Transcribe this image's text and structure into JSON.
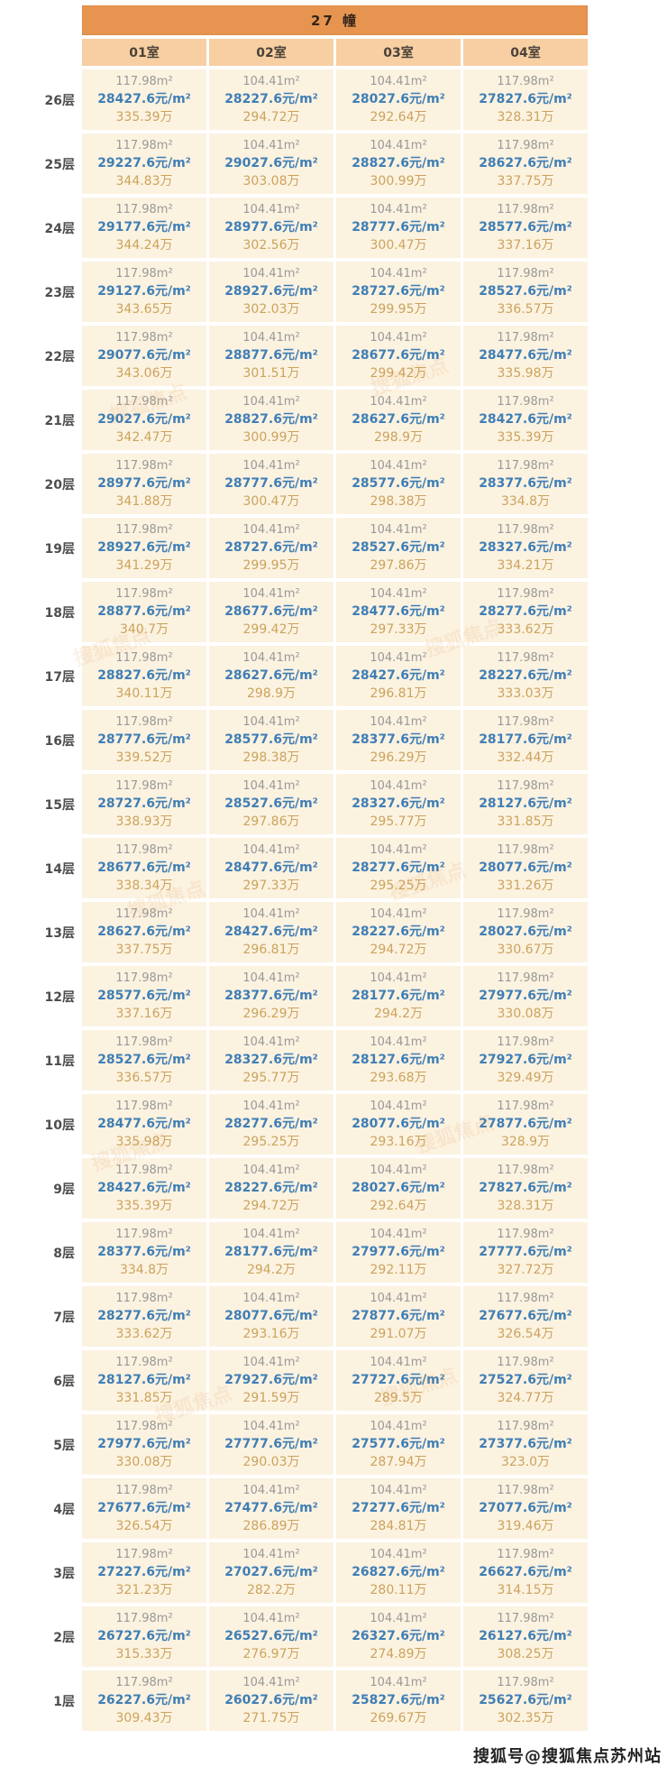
{
  "building": {
    "title": "27 幢"
  },
  "columns": [
    "01室",
    "02室",
    "03室",
    "04室"
  ],
  "floors": [
    {
      "label": "26层",
      "cells": [
        [
          "117.98m²",
          "28427.6元/m²",
          "335.39万"
        ],
        [
          "104.41m²",
          "28227.6元/m²",
          "294.72万"
        ],
        [
          "104.41m²",
          "28027.6元/m²",
          "292.64万"
        ],
        [
          "117.98m²",
          "27827.6元/m²",
          "328.31万"
        ]
      ]
    },
    {
      "label": "25层",
      "cells": [
        [
          "117.98m²",
          "29227.6元/m²",
          "344.83万"
        ],
        [
          "104.41m²",
          "29027.6元/m²",
          "303.08万"
        ],
        [
          "104.41m²",
          "28827.6元/m²",
          "300.99万"
        ],
        [
          "117.98m²",
          "28627.6元/m²",
          "337.75万"
        ]
      ]
    },
    {
      "label": "24层",
      "cells": [
        [
          "117.98m²",
          "29177.6元/m²",
          "344.24万"
        ],
        [
          "104.41m²",
          "28977.6元/m²",
          "302.56万"
        ],
        [
          "104.41m²",
          "28777.6元/m²",
          "300.47万"
        ],
        [
          "117.98m²",
          "28577.6元/m²",
          "337.16万"
        ]
      ]
    },
    {
      "label": "23层",
      "cells": [
        [
          "117.98m²",
          "29127.6元/m²",
          "343.65万"
        ],
        [
          "104.41m²",
          "28927.6元/m²",
          "302.03万"
        ],
        [
          "104.41m²",
          "28727.6元/m²",
          "299.95万"
        ],
        [
          "117.98m²",
          "28527.6元/m²",
          "336.57万"
        ]
      ]
    },
    {
      "label": "22层",
      "cells": [
        [
          "117.98m²",
          "29077.6元/m²",
          "343.06万"
        ],
        [
          "104.41m²",
          "28877.6元/m²",
          "301.51万"
        ],
        [
          "104.41m²",
          "28677.6元/m²",
          "299.42万"
        ],
        [
          "117.98m²",
          "28477.6元/m²",
          "335.98万"
        ]
      ]
    },
    {
      "label": "21层",
      "cells": [
        [
          "117.98m²",
          "29027.6元/m²",
          "342.47万"
        ],
        [
          "104.41m²",
          "28827.6元/m²",
          "300.99万"
        ],
        [
          "104.41m²",
          "28627.6元/m²",
          "298.9万"
        ],
        [
          "117.98m²",
          "28427.6元/m²",
          "335.39万"
        ]
      ]
    },
    {
      "label": "20层",
      "cells": [
        [
          "117.98m²",
          "28977.6元/m²",
          "341.88万"
        ],
        [
          "104.41m²",
          "28777.6元/m²",
          "300.47万"
        ],
        [
          "104.41m²",
          "28577.6元/m²",
          "298.38万"
        ],
        [
          "117.98m²",
          "28377.6元/m²",
          "334.8万"
        ]
      ]
    },
    {
      "label": "19层",
      "cells": [
        [
          "117.98m²",
          "28927.6元/m²",
          "341.29万"
        ],
        [
          "104.41m²",
          "28727.6元/m²",
          "299.95万"
        ],
        [
          "104.41m²",
          "28527.6元/m²",
          "297.86万"
        ],
        [
          "117.98m²",
          "28327.6元/m²",
          "334.21万"
        ]
      ]
    },
    {
      "label": "18层",
      "cells": [
        [
          "117.98m²",
          "28877.6元/m²",
          "340.7万"
        ],
        [
          "104.41m²",
          "28677.6元/m²",
          "299.42万"
        ],
        [
          "104.41m²",
          "28477.6元/m²",
          "297.33万"
        ],
        [
          "117.98m²",
          "28277.6元/m²",
          "333.62万"
        ]
      ]
    },
    {
      "label": "17层",
      "cells": [
        [
          "117.98m²",
          "28827.6元/m²",
          "340.11万"
        ],
        [
          "104.41m²",
          "28627.6元/m²",
          "298.9万"
        ],
        [
          "104.41m²",
          "28427.6元/m²",
          "296.81万"
        ],
        [
          "117.98m²",
          "28227.6元/m²",
          "333.03万"
        ]
      ]
    },
    {
      "label": "16层",
      "cells": [
        [
          "117.98m²",
          "28777.6元/m²",
          "339.52万"
        ],
        [
          "104.41m²",
          "28577.6元/m²",
          "298.38万"
        ],
        [
          "104.41m²",
          "28377.6元/m²",
          "296.29万"
        ],
        [
          "117.98m²",
          "28177.6元/m²",
          "332.44万"
        ]
      ]
    },
    {
      "label": "15层",
      "cells": [
        [
          "117.98m²",
          "28727.6元/m²",
          "338.93万"
        ],
        [
          "104.41m²",
          "28527.6元/m²",
          "297.86万"
        ],
        [
          "104.41m²",
          "28327.6元/m²",
          "295.77万"
        ],
        [
          "117.98m²",
          "28127.6元/m²",
          "331.85万"
        ]
      ]
    },
    {
      "label": "14层",
      "cells": [
        [
          "117.98m²",
          "28677.6元/m²",
          "338.34万"
        ],
        [
          "104.41m²",
          "28477.6元/m²",
          "297.33万"
        ],
        [
          "104.41m²",
          "28277.6元/m²",
          "295.25万"
        ],
        [
          "117.98m²",
          "28077.6元/m²",
          "331.26万"
        ]
      ]
    },
    {
      "label": "13层",
      "cells": [
        [
          "117.98m²",
          "28627.6元/m²",
          "337.75万"
        ],
        [
          "104.41m²",
          "28427.6元/m²",
          "296.81万"
        ],
        [
          "104.41m²",
          "28227.6元/m²",
          "294.72万"
        ],
        [
          "117.98m²",
          "28027.6元/m²",
          "330.67万"
        ]
      ]
    },
    {
      "label": "12层",
      "cells": [
        [
          "117.98m²",
          "28577.6元/m²",
          "337.16万"
        ],
        [
          "104.41m²",
          "28377.6元/m²",
          "296.29万"
        ],
        [
          "104.41m²",
          "28177.6元/m²",
          "294.2万"
        ],
        [
          "117.98m²",
          "27977.6元/m²",
          "330.08万"
        ]
      ]
    },
    {
      "label": "11层",
      "cells": [
        [
          "117.98m²",
          "28527.6元/m²",
          "336.57万"
        ],
        [
          "104.41m²",
          "28327.6元/m²",
          "295.77万"
        ],
        [
          "104.41m²",
          "28127.6元/m²",
          "293.68万"
        ],
        [
          "117.98m²",
          "27927.6元/m²",
          "329.49万"
        ]
      ]
    },
    {
      "label": "10层",
      "cells": [
        [
          "117.98m²",
          "28477.6元/m²",
          "335.98万"
        ],
        [
          "104.41m²",
          "28277.6元/m²",
          "295.25万"
        ],
        [
          "104.41m²",
          "28077.6元/m²",
          "293.16万"
        ],
        [
          "117.98m²",
          "27877.6元/m²",
          "328.9万"
        ]
      ]
    },
    {
      "label": "9层",
      "cells": [
        [
          "117.98m²",
          "28427.6元/m²",
          "335.39万"
        ],
        [
          "104.41m²",
          "28227.6元/m²",
          "294.72万"
        ],
        [
          "104.41m²",
          "28027.6元/m²",
          "292.64万"
        ],
        [
          "117.98m²",
          "27827.6元/m²",
          "328.31万"
        ]
      ]
    },
    {
      "label": "8层",
      "cells": [
        [
          "117.98m²",
          "28377.6元/m²",
          "334.8万"
        ],
        [
          "104.41m²",
          "28177.6元/m²",
          "294.2万"
        ],
        [
          "104.41m²",
          "27977.6元/m²",
          "292.11万"
        ],
        [
          "117.98m²",
          "27777.6元/m²",
          "327.72万"
        ]
      ]
    },
    {
      "label": "7层",
      "cells": [
        [
          "117.98m²",
          "28277.6元/m²",
          "333.62万"
        ],
        [
          "104.41m²",
          "28077.6元/m²",
          "293.16万"
        ],
        [
          "104.41m²",
          "27877.6元/m²",
          "291.07万"
        ],
        [
          "117.98m²",
          "27677.6元/m²",
          "326.54万"
        ]
      ]
    },
    {
      "label": "6层",
      "cells": [
        [
          "117.98m²",
          "28127.6元/m²",
          "331.85万"
        ],
        [
          "104.41m²",
          "27927.6元/m²",
          "291.59万"
        ],
        [
          "104.41m²",
          "27727.6元/m²",
          "289.5万"
        ],
        [
          "117.98m²",
          "27527.6元/m²",
          "324.77万"
        ]
      ]
    },
    {
      "label": "5层",
      "cells": [
        [
          "117.98m²",
          "27977.6元/m²",
          "330.08万"
        ],
        [
          "104.41m²",
          "27777.6元/m²",
          "290.03万"
        ],
        [
          "104.41m²",
          "27577.6元/m²",
          "287.94万"
        ],
        [
          "117.98m²",
          "27377.6元/m²",
          "323.0万"
        ]
      ]
    },
    {
      "label": "4层",
      "cells": [
        [
          "117.98m²",
          "27677.6元/m²",
          "326.54万"
        ],
        [
          "104.41m²",
          "27477.6元/m²",
          "286.89万"
        ],
        [
          "104.41m²",
          "27277.6元/m²",
          "284.81万"
        ],
        [
          "117.98m²",
          "27077.6元/m²",
          "319.46万"
        ]
      ]
    },
    {
      "label": "3层",
      "cells": [
        [
          "117.98m²",
          "27227.6元/m²",
          "321.23万"
        ],
        [
          "104.41m²",
          "27027.6元/m²",
          "282.2万"
        ],
        [
          "104.41m²",
          "26827.6元/m²",
          "280.11万"
        ],
        [
          "117.98m²",
          "26627.6元/m²",
          "314.15万"
        ]
      ]
    },
    {
      "label": "2层",
      "cells": [
        [
          "117.98m²",
          "26727.6元/m²",
          "315.33万"
        ],
        [
          "104.41m²",
          "26527.6元/m²",
          "276.97万"
        ],
        [
          "104.41m²",
          "26327.6元/m²",
          "274.89万"
        ],
        [
          "117.98m²",
          "26127.6元/m²",
          "308.25万"
        ]
      ]
    },
    {
      "label": "1层",
      "cells": [
        [
          "117.98m²",
          "26227.6元/m²",
          "309.43万"
        ],
        [
          "104.41m²",
          "26027.6元/m²",
          "271.75万"
        ],
        [
          "104.41m²",
          "25827.6元/m²",
          "269.67万"
        ],
        [
          "117.98m²",
          "25627.6元/m²",
          "302.35万"
        ]
      ]
    }
  ],
  "watermarks": {
    "credit": "搜狐号@搜狐焦点苏州站",
    "faint": "搜狐焦点"
  },
  "colors": {
    "header_orange": "#E6944F",
    "subheader_orange": "#F7CFA2",
    "cell_cream": "#FCF2E0",
    "unit_price_blue": "#3F7EB5",
    "total_price_tan": "#CBA35C",
    "area_gray": "#999999"
  }
}
